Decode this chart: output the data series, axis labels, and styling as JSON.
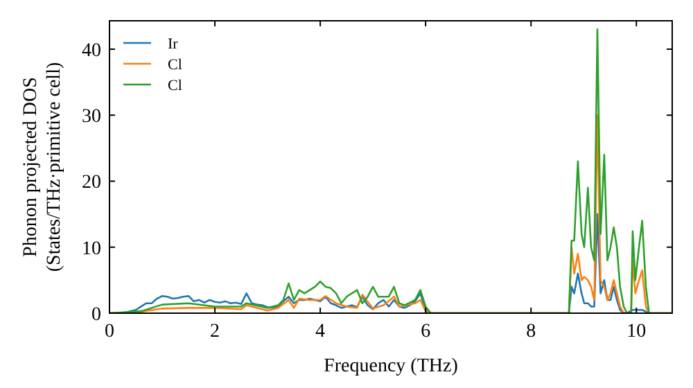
{
  "chart_data": {
    "type": "line",
    "xlabel": "Frequency (THz)",
    "ylabel": "Phonon projected DOS\n(States/THz·primitive cell)",
    "xlim": [
      0,
      10.68
    ],
    "ylim": [
      0,
      44.3
    ],
    "xticks": [
      0,
      2,
      4,
      6,
      8,
      10
    ],
    "yticks": [
      0,
      10,
      20,
      30,
      40
    ],
    "legend": "top left",
    "grid": false,
    "series": [
      {
        "name": "Ir",
        "color": "#1f77b4",
        "x": [
          0,
          0.3,
          0.5,
          0.6,
          0.7,
          0.8,
          0.9,
          1.0,
          1.1,
          1.2,
          1.3,
          1.4,
          1.5,
          1.6,
          1.7,
          1.8,
          1.9,
          2.0,
          2.1,
          2.2,
          2.3,
          2.4,
          2.5,
          2.6,
          2.7,
          2.8,
          2.9,
          3.0,
          3.1,
          3.2,
          3.3,
          3.4,
          3.5,
          3.6,
          3.7,
          3.8,
          3.9,
          4.0,
          4.1,
          4.2,
          4.3,
          4.4,
          4.5,
          4.6,
          4.7,
          4.8,
          4.9,
          5.0,
          5.1,
          5.2,
          5.3,
          5.4,
          5.5,
          5.6,
          5.7,
          5.8,
          5.9,
          6.0,
          6.1,
          8.72,
          8.77,
          8.82,
          8.89,
          8.96,
          9.01,
          9.08,
          9.14,
          9.2,
          9.26,
          9.32,
          9.39,
          9.45,
          9.51,
          9.57,
          9.63,
          9.69,
          9.76,
          9.82,
          9.93,
          10.11,
          10.24,
          10.68
        ],
        "values": [
          0,
          0.1,
          0.5,
          1.0,
          1.5,
          1.5,
          2.2,
          2.6,
          2.5,
          2.2,
          2.3,
          2.5,
          2.6,
          1.8,
          2.0,
          1.6,
          2.0,
          1.7,
          1.6,
          1.8,
          1.5,
          1.6,
          1.4,
          3.0,
          1.5,
          1.3,
          1.2,
          0.9,
          0.8,
          1.0,
          1.8,
          2.5,
          1.5,
          2.0,
          2.0,
          2.2,
          2.0,
          1.8,
          2.5,
          1.5,
          1.2,
          0.8,
          1.0,
          1.2,
          0.9,
          2.5,
          1.2,
          0.6,
          1.5,
          2.0,
          1.0,
          2.0,
          1.0,
          0.8,
          1.2,
          1.8,
          3.0,
          0.5,
          0,
          0,
          4,
          3,
          6,
          3,
          1.5,
          1.5,
          1,
          1,
          15,
          3,
          5,
          2,
          2,
          4,
          2,
          0.5,
          0,
          0,
          0.5,
          0.5,
          0,
          0
        ]
      },
      {
        "name": "Cl",
        "color": "#ff7f0e",
        "x": [
          0,
          0.5,
          1.0,
          1.5,
          2.0,
          2.5,
          2.6,
          3.0,
          3.2,
          3.4,
          3.5,
          3.6,
          3.8,
          4.0,
          4.1,
          4.3,
          4.5,
          4.7,
          4.8,
          5.0,
          5.2,
          5.4,
          5.5,
          5.8,
          5.9,
          6.0,
          6.1,
          8.72,
          8.77,
          8.82,
          8.89,
          8.96,
          9.01,
          9.08,
          9.14,
          9.2,
          9.26,
          9.32,
          9.39,
          9.45,
          9.51,
          9.57,
          9.63,
          9.69,
          9.76,
          9.9,
          9.93,
          9.98,
          10.05,
          10.11,
          10.18,
          10.24,
          10.68
        ],
        "values": [
          0,
          0.1,
          0.7,
          0.8,
          0.8,
          0.6,
          1.2,
          0.4,
          0.8,
          2.0,
          0.8,
          2.2,
          2.0,
          2.0,
          2.6,
          1.5,
          1.0,
          0.8,
          2.8,
          0.7,
          1.2,
          2.5,
          1.0,
          1.5,
          2.0,
          0.3,
          0,
          0,
          10,
          6,
          9,
          5,
          5.5,
          5,
          4,
          2,
          30,
          5,
          4,
          2,
          3,
          5,
          3,
          1,
          0,
          0,
          8,
          3,
          5,
          6.5,
          1,
          0,
          0
        ]
      },
      {
        "name": "Cl",
        "color": "#2ca02c",
        "x": [
          0,
          0.6,
          1.0,
          1.5,
          2.0,
          2.5,
          2.6,
          3.0,
          3.2,
          3.3,
          3.4,
          3.5,
          3.6,
          3.7,
          3.9,
          4.0,
          4.1,
          4.2,
          4.3,
          4.4,
          4.5,
          4.7,
          4.8,
          4.9,
          5.0,
          5.1,
          5.3,
          5.4,
          5.5,
          5.6,
          5.8,
          5.9,
          6.0,
          6.1,
          8.72,
          8.77,
          8.82,
          8.89,
          8.96,
          9.01,
          9.08,
          9.14,
          9.2,
          9.26,
          9.32,
          9.39,
          9.45,
          9.51,
          9.57,
          9.63,
          9.69,
          9.76,
          9.82,
          9.9,
          9.93,
          9.98,
          10.05,
          10.11,
          10.18,
          10.24,
          10.68
        ],
        "values": [
          0,
          0.3,
          1.3,
          1.5,
          1.0,
          1.0,
          1.5,
          0.8,
          1.2,
          2.0,
          4.5,
          2.0,
          3.5,
          3.0,
          4.0,
          4.8,
          4.0,
          3.8,
          3.0,
          1.5,
          2.5,
          3.5,
          1.5,
          2.5,
          4.0,
          2.5,
          2.5,
          4.0,
          1.5,
          1.2,
          2.0,
          3.5,
          1.0,
          0,
          0,
          11,
          11,
          23,
          12,
          10,
          19,
          10,
          8,
          43,
          12,
          24,
          8,
          10,
          13,
          10,
          4,
          1,
          0,
          0,
          12.4,
          5,
          10,
          14,
          4,
          0,
          0
        ]
      }
    ]
  }
}
